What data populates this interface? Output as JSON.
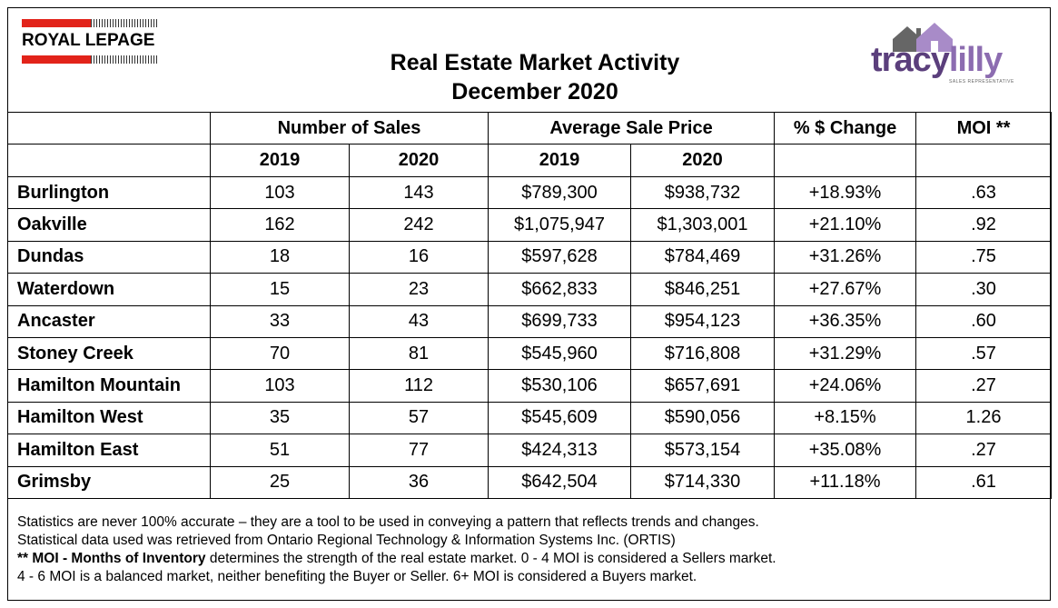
{
  "header": {
    "brand_left": "ROYAL LEPAGE",
    "title_line1": "Real Estate Market Activity",
    "title_line2": "December 2020",
    "brand_right_a": "tracy",
    "brand_right_b": "lilly",
    "brand_right_sub": "SALES REPRESENTATIVE"
  },
  "table": {
    "group_headers": {
      "sales": "Number of Sales",
      "price": "Average Sale Price",
      "change": "% $ Change",
      "moi": "MOI **"
    },
    "year_headers": {
      "sales_2019": "2019",
      "sales_2020": "2020",
      "price_2019": "2019",
      "price_2020": "2020"
    },
    "rows": [
      {
        "city": "Burlington",
        "sales_2019": "103",
        "sales_2020": "143",
        "price_2019": "$789,300",
        "price_2020": "$938,732",
        "change": "+18.93%",
        "moi": ".63"
      },
      {
        "city": "Oakville",
        "sales_2019": "162",
        "sales_2020": "242",
        "price_2019": "$1,075,947",
        "price_2020": "$1,303,001",
        "change": "+21.10%",
        "moi": ".92"
      },
      {
        "city": "Dundas",
        "sales_2019": "18",
        "sales_2020": "16",
        "price_2019": "$597,628",
        "price_2020": "$784,469",
        "change": "+31.26%",
        "moi": ".75"
      },
      {
        "city": "Waterdown",
        "sales_2019": "15",
        "sales_2020": "23",
        "price_2019": "$662,833",
        "price_2020": "$846,251",
        "change": "+27.67%",
        "moi": ".30"
      },
      {
        "city": "Ancaster",
        "sales_2019": "33",
        "sales_2020": "43",
        "price_2019": "$699,733",
        "price_2020": "$954,123",
        "change": "+36.35%",
        "moi": ".60"
      },
      {
        "city": "Stoney Creek",
        "sales_2019": "70",
        "sales_2020": "81",
        "price_2019": "$545,960",
        "price_2020": "$716,808",
        "change": "+31.29%",
        "moi": ".57"
      },
      {
        "city": "Hamilton Mountain",
        "sales_2019": "103",
        "sales_2020": "112",
        "price_2019": "$530,106",
        "price_2020": "$657,691",
        "change": "+24.06%",
        "moi": ".27"
      },
      {
        "city": "Hamilton West",
        "sales_2019": "35",
        "sales_2020": "57",
        "price_2019": "$545,609",
        "price_2020": "$590,056",
        "change": "+8.15%",
        "moi": "1.26"
      },
      {
        "city": "Hamilton East",
        "sales_2019": "51",
        "sales_2020": "77",
        "price_2019": "$424,313",
        "price_2020": "$573,154",
        "change": "+35.08%",
        "moi": ".27"
      },
      {
        "city": "Grimsby",
        "sales_2019": "25",
        "sales_2020": "36",
        "price_2019": "$642,504",
        "price_2020": "$714,330",
        "change": "+11.18%",
        "moi": ".61"
      }
    ]
  },
  "footer": {
    "line1": "Statistics are never 100% accurate – they are a tool to be used in conveying a pattern that reflects trends and changes.",
    "line2": "Statistical data used was retrieved from Ontario Regional Technology & Information Systems Inc. (ORTIS)",
    "line3_bold": "** MOI - Months of Inventory",
    "line3_rest": " determines the strength of the real estate market. 0 - 4 MOI is considered a Sellers market.",
    "line4": "4 - 6 MOI is a balanced market, neither benefiting the Buyer or Seller. 6+ MOI is considered a Buyers market."
  }
}
